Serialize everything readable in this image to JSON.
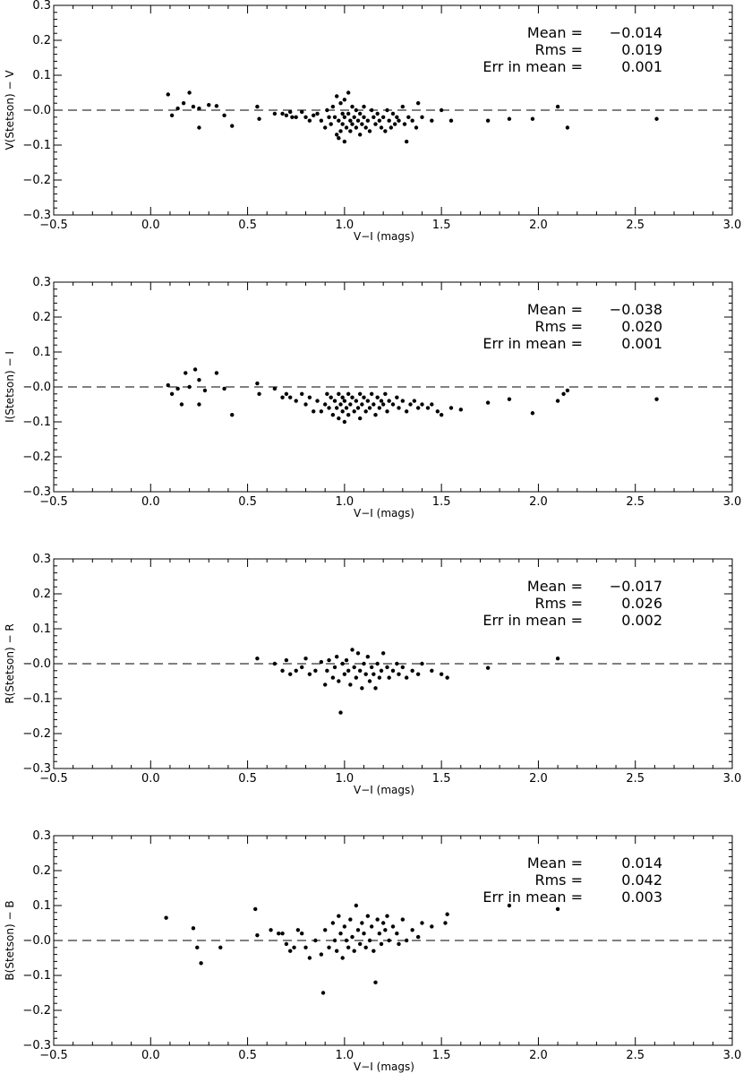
{
  "chart_data": [
    {
      "type": "scatter",
      "xlabel": "V−I (mags)",
      "ylabel": "V(Stetson) − V",
      "xlim": [
        -0.5,
        3.0
      ],
      "ylim": [
        -0.3,
        0.3
      ],
      "xticks": [
        "−0.5",
        "0.0",
        "0.5",
        "1.0",
        "1.5",
        "2.0",
        "2.5",
        "3.0"
      ],
      "yticks": [
        "−0.3",
        "−0.2",
        "−0.1",
        "−0.0",
        "0.1",
        "0.2",
        "0.3"
      ],
      "reference_line": 0.0,
      "stats": [
        {
          "label": "Mean =",
          "value": "−0.014"
        },
        {
          "label": "Rms =",
          "value": "0.019"
        },
        {
          "label": "Err in mean =",
          "value": "0.001"
        }
      ],
      "points": [
        [
          0.09,
          0.045
        ],
        [
          0.11,
          -0.015
        ],
        [
          0.14,
          0.005
        ],
        [
          0.17,
          0.02
        ],
        [
          0.2,
          0.05
        ],
        [
          0.22,
          0.01
        ],
        [
          0.25,
          0.005
        ],
        [
          0.25,
          -0.05
        ],
        [
          0.3,
          0.015
        ],
        [
          0.34,
          0.012
        ],
        [
          0.38,
          -0.015
        ],
        [
          0.42,
          -0.045
        ],
        [
          0.55,
          0.01
        ],
        [
          0.56,
          -0.025
        ],
        [
          0.64,
          -0.01
        ],
        [
          0.68,
          -0.01
        ],
        [
          0.7,
          -0.015
        ],
        [
          0.72,
          -0.005
        ],
        [
          0.73,
          -0.02
        ],
        [
          0.75,
          -0.02
        ],
        [
          0.78,
          -0.005
        ],
        [
          0.8,
          -0.02
        ],
        [
          0.82,
          -0.03
        ],
        [
          0.84,
          -0.015
        ],
        [
          0.86,
          -0.01
        ],
        [
          0.88,
          -0.03
        ],
        [
          0.9,
          -0.05
        ],
        [
          0.91,
          0.0
        ],
        [
          0.92,
          -0.02
        ],
        [
          0.93,
          -0.04
        ],
        [
          0.94,
          0.01
        ],
        [
          0.95,
          -0.02
        ],
        [
          0.96,
          0.04
        ],
        [
          0.96,
          -0.07
        ],
        [
          0.97,
          -0.03
        ],
        [
          0.97,
          -0.08
        ],
        [
          0.98,
          0.02
        ],
        [
          0.98,
          -0.06
        ],
        [
          0.99,
          -0.01
        ],
        [
          0.99,
          -0.04
        ],
        [
          1.0,
          0.03
        ],
        [
          1.0,
          -0.02
        ],
        [
          1.0,
          -0.09
        ],
        [
          1.01,
          -0.05
        ],
        [
          1.02,
          0.05
        ],
        [
          1.02,
          -0.01
        ],
        [
          1.03,
          -0.03
        ],
        [
          1.03,
          -0.06
        ],
        [
          1.04,
          0.01
        ],
        [
          1.04,
          -0.04
        ],
        [
          1.05,
          -0.02
        ],
        [
          1.06,
          0.0
        ],
        [
          1.06,
          -0.05
        ],
        [
          1.07,
          -0.03
        ],
        [
          1.08,
          -0.01
        ],
        [
          1.08,
          -0.07
        ],
        [
          1.09,
          -0.04
        ],
        [
          1.1,
          0.01
        ],
        [
          1.1,
          -0.02
        ],
        [
          1.11,
          -0.05
        ],
        [
          1.12,
          -0.03
        ],
        [
          1.13,
          -0.06
        ],
        [
          1.14,
          0.0
        ],
        [
          1.15,
          -0.02
        ],
        [
          1.16,
          -0.04
        ],
        [
          1.17,
          -0.01
        ],
        [
          1.18,
          -0.03
        ],
        [
          1.19,
          -0.05
        ],
        [
          1.2,
          -0.02
        ],
        [
          1.21,
          -0.06
        ],
        [
          1.22,
          0.0
        ],
        [
          1.23,
          -0.03
        ],
        [
          1.24,
          -0.05
        ],
        [
          1.25,
          -0.01
        ],
        [
          1.26,
          -0.04
        ],
        [
          1.27,
          -0.02
        ],
        [
          1.28,
          -0.03
        ],
        [
          1.3,
          0.01
        ],
        [
          1.31,
          -0.04
        ],
        [
          1.32,
          -0.09
        ],
        [
          1.33,
          -0.02
        ],
        [
          1.35,
          -0.03
        ],
        [
          1.37,
          -0.05
        ],
        [
          1.38,
          0.02
        ],
        [
          1.4,
          -0.02
        ],
        [
          1.45,
          -0.03
        ],
        [
          1.5,
          0.0
        ],
        [
          1.55,
          -0.03
        ],
        [
          1.74,
          -0.03
        ],
        [
          1.85,
          -0.025
        ],
        [
          1.97,
          -0.025
        ],
        [
          2.1,
          0.01
        ],
        [
          2.15,
          -0.05
        ],
        [
          2.61,
          -0.025
        ]
      ]
    },
    {
      "type": "scatter",
      "xlabel": "V−I (mags)",
      "ylabel": "I(Stetson) − I",
      "xlim": [
        -0.5,
        3.0
      ],
      "ylim": [
        -0.3,
        0.3
      ],
      "xticks": [
        "−0.5",
        "0.0",
        "0.5",
        "1.0",
        "1.5",
        "2.0",
        "2.5",
        "3.0"
      ],
      "yticks": [
        "−0.3",
        "−0.2",
        "−0.1",
        "−0.0",
        "0.1",
        "0.2",
        "0.3"
      ],
      "reference_line": 0.0,
      "stats": [
        {
          "label": "Mean =",
          "value": "−0.038"
        },
        {
          "label": "Rms =",
          "value": "0.020"
        },
        {
          "label": "Err in mean =",
          "value": "0.001"
        }
      ],
      "points": [
        [
          0.09,
          0.005
        ],
        [
          0.11,
          -0.02
        ],
        [
          0.14,
          -0.005
        ],
        [
          0.16,
          -0.05
        ],
        [
          0.18,
          0.04
        ],
        [
          0.2,
          0.0
        ],
        [
          0.23,
          0.05
        ],
        [
          0.25,
          0.02
        ],
        [
          0.25,
          -0.05
        ],
        [
          0.28,
          -0.01
        ],
        [
          0.34,
          0.04
        ],
        [
          0.38,
          -0.005
        ],
        [
          0.42,
          -0.08
        ],
        [
          0.55,
          0.01
        ],
        [
          0.56,
          -0.02
        ],
        [
          0.64,
          -0.005
        ],
        [
          0.68,
          -0.03
        ],
        [
          0.7,
          -0.02
        ],
        [
          0.72,
          -0.03
        ],
        [
          0.75,
          -0.04
        ],
        [
          0.78,
          -0.02
        ],
        [
          0.8,
          -0.05
        ],
        [
          0.82,
          -0.03
        ],
        [
          0.84,
          -0.07
        ],
        [
          0.86,
          -0.04
        ],
        [
          0.88,
          -0.07
        ],
        [
          0.9,
          -0.05
        ],
        [
          0.91,
          -0.02
        ],
        [
          0.92,
          -0.06
        ],
        [
          0.93,
          -0.03
        ],
        [
          0.94,
          -0.08
        ],
        [
          0.95,
          -0.04
        ],
        [
          0.96,
          -0.06
        ],
        [
          0.97,
          -0.02
        ],
        [
          0.97,
          -0.09
        ],
        [
          0.98,
          -0.05
        ],
        [
          0.99,
          -0.03
        ],
        [
          0.99,
          -0.07
        ],
        [
          1.0,
          -0.04
        ],
        [
          1.0,
          -0.1
        ],
        [
          1.01,
          -0.06
        ],
        [
          1.02,
          -0.02
        ],
        [
          1.02,
          -0.08
        ],
        [
          1.03,
          -0.05
        ],
        [
          1.04,
          -0.03
        ],
        [
          1.05,
          -0.07
        ],
        [
          1.06,
          -0.04
        ],
        [
          1.07,
          -0.06
        ],
        [
          1.08,
          -0.02
        ],
        [
          1.08,
          -0.09
        ],
        [
          1.09,
          -0.05
        ],
        [
          1.1,
          -0.03
        ],
        [
          1.11,
          -0.07
        ],
        [
          1.12,
          -0.04
        ],
        [
          1.13,
          -0.06
        ],
        [
          1.14,
          -0.02
        ],
        [
          1.15,
          -0.05
        ],
        [
          1.16,
          -0.08
        ],
        [
          1.17,
          -0.03
        ],
        [
          1.18,
          -0.06
        ],
        [
          1.19,
          -0.04
        ],
        [
          1.2,
          -0.05
        ],
        [
          1.21,
          -0.02
        ],
        [
          1.22,
          -0.07
        ],
        [
          1.23,
          -0.04
        ],
        [
          1.25,
          -0.05
        ],
        [
          1.27,
          -0.03
        ],
        [
          1.28,
          -0.06
        ],
        [
          1.3,
          -0.04
        ],
        [
          1.32,
          -0.07
        ],
        [
          1.34,
          -0.05
        ],
        [
          1.36,
          -0.04
        ],
        [
          1.38,
          -0.06
        ],
        [
          1.4,
          -0.05
        ],
        [
          1.43,
          -0.06
        ],
        [
          1.45,
          -0.05
        ],
        [
          1.48,
          -0.07
        ],
        [
          1.5,
          -0.08
        ],
        [
          1.55,
          -0.06
        ],
        [
          1.6,
          -0.065
        ],
        [
          1.74,
          -0.045
        ],
        [
          1.85,
          -0.035
        ],
        [
          1.97,
          -0.075
        ],
        [
          2.1,
          -0.04
        ],
        [
          2.13,
          -0.02
        ],
        [
          2.15,
          -0.01
        ],
        [
          2.61,
          -0.035
        ]
      ]
    },
    {
      "type": "scatter",
      "xlabel": "V−I (mags)",
      "ylabel": "R(Stetson) − R",
      "xlim": [
        -0.5,
        3.0
      ],
      "ylim": [
        -0.3,
        0.3
      ],
      "xticks": [
        "−0.5",
        "0.0",
        "0.5",
        "1.0",
        "1.5",
        "2.0",
        "2.5",
        "3.0"
      ],
      "yticks": [
        "−0.3",
        "−0.2",
        "−0.1",
        "−0.0",
        "0.1",
        "0.2",
        "0.3"
      ],
      "reference_line": 0.0,
      "stats": [
        {
          "label": "Mean =",
          "value": "−0.017"
        },
        {
          "label": "Rms =",
          "value": "0.026"
        },
        {
          "label": "Err in mean =",
          "value": "0.002"
        }
      ],
      "points": [
        [
          0.55,
          0.015
        ],
        [
          0.64,
          0.0
        ],
        [
          0.68,
          -0.02
        ],
        [
          0.7,
          0.01
        ],
        [
          0.72,
          -0.03
        ],
        [
          0.75,
          -0.02
        ],
        [
          0.78,
          -0.01
        ],
        [
          0.8,
          0.015
        ],
        [
          0.82,
          -0.03
        ],
        [
          0.85,
          -0.02
        ],
        [
          0.88,
          0.005
        ],
        [
          0.9,
          -0.06
        ],
        [
          0.91,
          -0.02
        ],
        [
          0.92,
          0.01
        ],
        [
          0.94,
          -0.04
        ],
        [
          0.95,
          -0.01
        ],
        [
          0.96,
          0.02
        ],
        [
          0.97,
          -0.05
        ],
        [
          0.98,
          -0.14
        ],
        [
          0.99,
          0.0
        ],
        [
          1.0,
          -0.03
        ],
        [
          1.01,
          0.01
        ],
        [
          1.02,
          -0.02
        ],
        [
          1.03,
          -0.06
        ],
        [
          1.04,
          0.04
        ],
        [
          1.05,
          -0.01
        ],
        [
          1.06,
          -0.04
        ],
        [
          1.07,
          0.03
        ],
        [
          1.08,
          -0.02
        ],
        [
          1.09,
          -0.07
        ],
        [
          1.1,
          0.0
        ],
        [
          1.11,
          -0.03
        ],
        [
          1.12,
          0.02
        ],
        [
          1.13,
          -0.05
        ],
        [
          1.14,
          -0.01
        ],
        [
          1.15,
          -0.03
        ],
        [
          1.16,
          -0.07
        ],
        [
          1.17,
          0.0
        ],
        [
          1.18,
          -0.04
        ],
        [
          1.19,
          -0.02
        ],
        [
          1.2,
          0.03
        ],
        [
          1.22,
          -0.01
        ],
        [
          1.23,
          -0.04
        ],
        [
          1.25,
          -0.02
        ],
        [
          1.27,
          0.0
        ],
        [
          1.28,
          -0.03
        ],
        [
          1.3,
          -0.01
        ],
        [
          1.32,
          -0.04
        ],
        [
          1.35,
          -0.02
        ],
        [
          1.38,
          -0.03
        ],
        [
          1.4,
          0.0
        ],
        [
          1.45,
          -0.02
        ],
        [
          1.5,
          -0.03
        ],
        [
          1.53,
          -0.04
        ],
        [
          1.74,
          -0.012
        ],
        [
          2.1,
          0.015
        ]
      ]
    },
    {
      "type": "scatter",
      "xlabel": "V−I (mags)",
      "ylabel": "B(Stetson) − B",
      "xlim": [
        -0.5,
        3.0
      ],
      "ylim": [
        -0.3,
        0.3
      ],
      "xticks": [
        "−0.5",
        "0.0",
        "0.5",
        "1.0",
        "1.5",
        "2.0",
        "2.5",
        "3.0"
      ],
      "yticks": [
        "−0.3",
        "−0.2",
        "−0.1",
        "−0.0",
        "0.1",
        "0.2",
        "0.3"
      ],
      "reference_line": 0.0,
      "stats": [
        {
          "label": "Mean =",
          "value": "0.014"
        },
        {
          "label": "Rms =",
          "value": "0.042"
        },
        {
          "label": "Err in mean =",
          "value": "0.003"
        }
      ],
      "points": [
        [
          0.08,
          0.065
        ],
        [
          0.22,
          0.035
        ],
        [
          0.24,
          -0.02
        ],
        [
          0.26,
          -0.065
        ],
        [
          0.36,
          -0.02
        ],
        [
          0.54,
          0.09
        ],
        [
          0.55,
          0.015
        ],
        [
          0.62,
          0.03
        ],
        [
          0.66,
          0.02
        ],
        [
          0.68,
          0.02
        ],
        [
          0.7,
          -0.01
        ],
        [
          0.72,
          -0.03
        ],
        [
          0.74,
          -0.02
        ],
        [
          0.76,
          0.03
        ],
        [
          0.78,
          0.02
        ],
        [
          0.8,
          -0.02
        ],
        [
          0.82,
          -0.05
        ],
        [
          0.85,
          0.0
        ],
        [
          0.88,
          -0.04
        ],
        [
          0.89,
          -0.15
        ],
        [
          0.9,
          0.03
        ],
        [
          0.92,
          -0.02
        ],
        [
          0.94,
          0.05
        ],
        [
          0.95,
          0.0
        ],
        [
          0.96,
          -0.03
        ],
        [
          0.97,
          0.07
        ],
        [
          0.98,
          0.02
        ],
        [
          0.99,
          -0.05
        ],
        [
          1.0,
          0.04
        ],
        [
          1.01,
          0.0
        ],
        [
          1.02,
          -0.02
        ],
        [
          1.03,
          0.06
        ],
        [
          1.04,
          0.01
        ],
        [
          1.05,
          -0.03
        ],
        [
          1.06,
          0.1
        ],
        [
          1.07,
          0.03
        ],
        [
          1.08,
          -0.01
        ],
        [
          1.09,
          0.05
        ],
        [
          1.1,
          0.02
        ],
        [
          1.11,
          -0.02
        ],
        [
          1.12,
          0.07
        ],
        [
          1.13,
          0.0
        ],
        [
          1.14,
          0.04
        ],
        [
          1.15,
          -0.03
        ],
        [
          1.16,
          -0.12
        ],
        [
          1.17,
          0.06
        ],
        [
          1.18,
          0.02
        ],
        [
          1.19,
          -0.01
        ],
        [
          1.2,
          0.05
        ],
        [
          1.21,
          0.03
        ],
        [
          1.22,
          0.07
        ],
        [
          1.23,
          0.0
        ],
        [
          1.25,
          0.04
        ],
        [
          1.27,
          0.02
        ],
        [
          1.28,
          -0.01
        ],
        [
          1.3,
          0.06
        ],
        [
          1.32,
          0.0
        ],
        [
          1.35,
          0.03
        ],
        [
          1.38,
          0.01
        ],
        [
          1.4,
          0.05
        ],
        [
          1.45,
          0.04
        ],
        [
          1.52,
          0.05
        ],
        [
          1.53,
          0.075
        ],
        [
          1.85,
          0.1
        ],
        [
          2.1,
          0.09
        ]
      ]
    }
  ]
}
